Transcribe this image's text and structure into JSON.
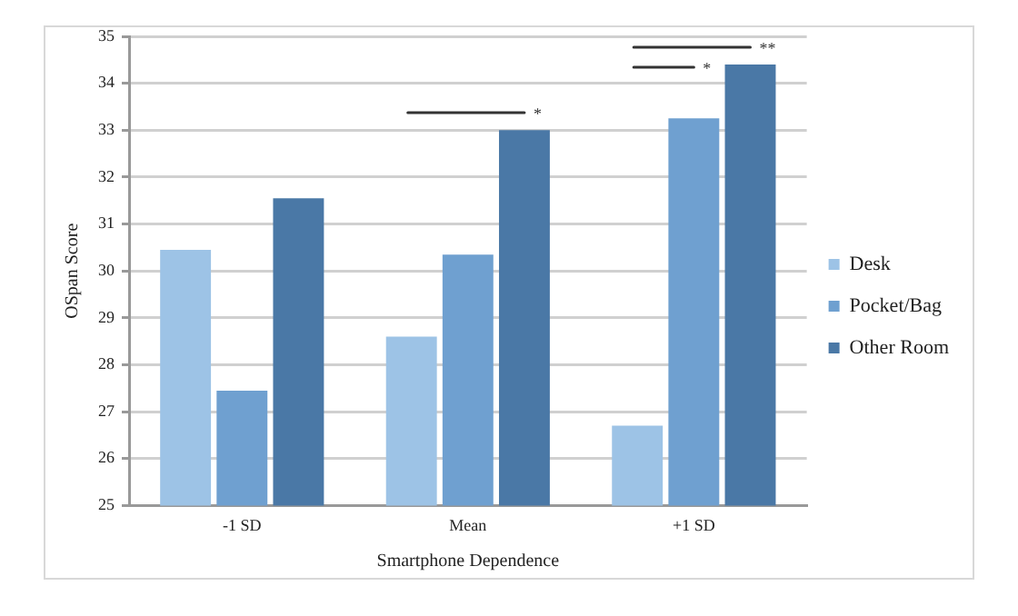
{
  "chart_data": {
    "type": "bar",
    "xlabel": "Smartphone Dependence",
    "ylabel": "OSpan Score",
    "categories": [
      "-1 SD",
      "Mean",
      "+1 SD"
    ],
    "series": [
      {
        "name": "Desk",
        "color": "#9dc3e6",
        "values": [
          30.45,
          28.6,
          26.7
        ]
      },
      {
        "name": "Pocket/Bag",
        "color": "#6fa0d0",
        "values": [
          27.45,
          30.35,
          33.25
        ]
      },
      {
        "name": "Other Room",
        "color": "#4a78a6",
        "values": [
          31.55,
          33.0,
          34.4
        ]
      }
    ],
    "ylim": [
      25,
      35
    ],
    "yticks": [
      25,
      26,
      27,
      28,
      29,
      30,
      31,
      32,
      33,
      34,
      35
    ],
    "grid": "y",
    "legend": "right",
    "annotations": [
      "*",
      "*",
      "**"
    ]
  }
}
